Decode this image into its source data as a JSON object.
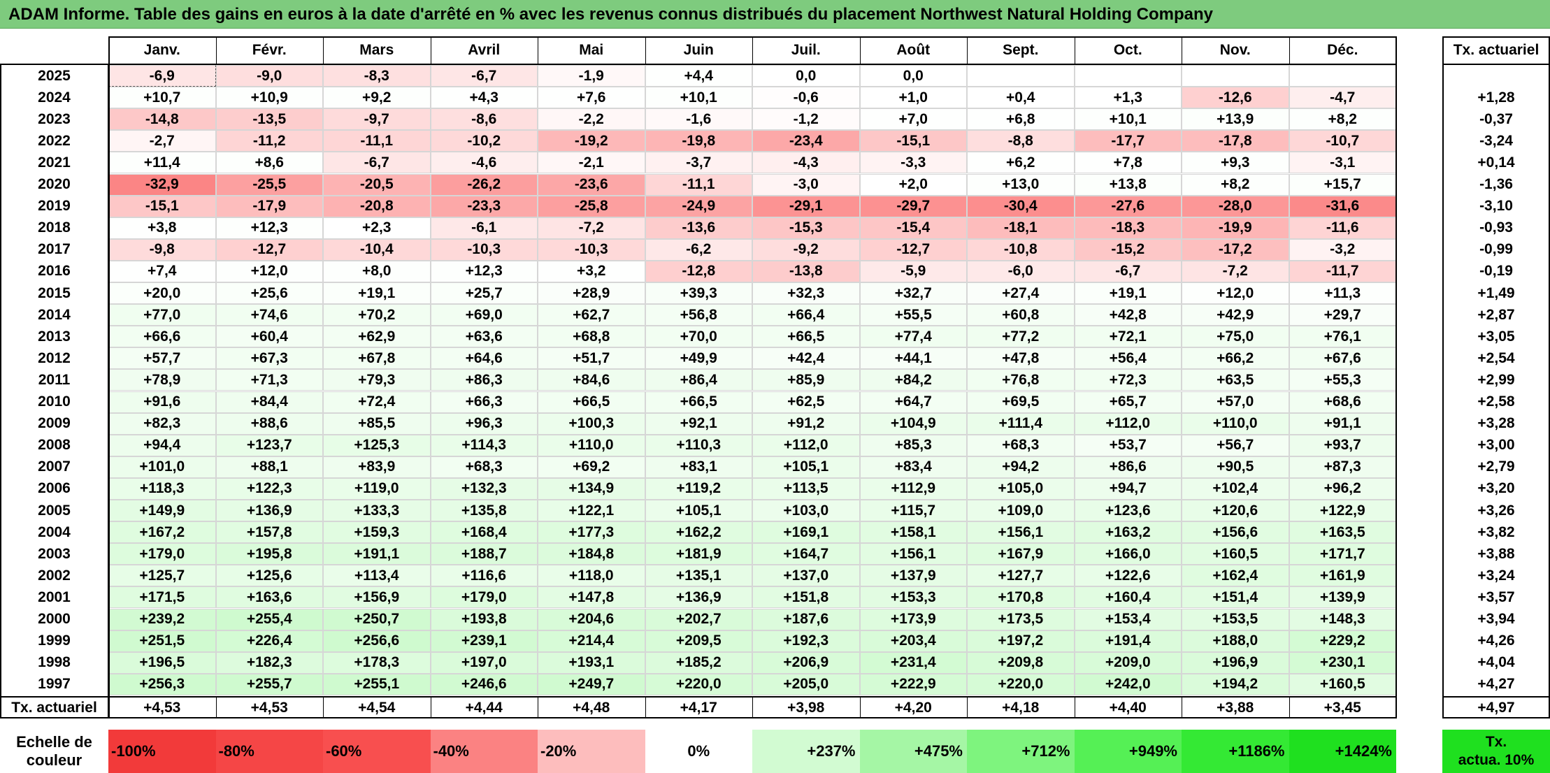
{
  "title": "ADAM Informe. Table des gains en euros à la date d'arrêté en % avec les revenus connus distribués du placement Northwest Natural Holding Company",
  "chart_data": {
    "type": "table",
    "months": [
      "Janv.",
      "Févr.",
      "Mars",
      "Avril",
      "Mai",
      "Juin",
      "Juil.",
      "Août",
      "Sept.",
      "Oct.",
      "Nov.",
      "Déc."
    ],
    "rate_header": "Tx. actuariel",
    "rows": [
      {
        "year": "2025",
        "values": [
          "-6,9",
          "-9,0",
          "-8,3",
          "-6,7",
          "-1,9",
          "+4,4",
          "0,0",
          "0,0",
          "",
          "",
          "",
          ""
        ],
        "rate": ""
      },
      {
        "year": "2024",
        "values": [
          "+10,7",
          "+10,9",
          "+9,2",
          "+4,3",
          "+7,6",
          "+10,1",
          "-0,6",
          "+1,0",
          "+0,4",
          "+1,3",
          "-12,6",
          "-4,7"
        ],
        "rate": "+1,28"
      },
      {
        "year": "2023",
        "values": [
          "-14,8",
          "-13,5",
          "-9,7",
          "-8,6",
          "-2,2",
          "-1,6",
          "-1,2",
          "+7,0",
          "+6,8",
          "+10,1",
          "+13,9",
          "+8,2"
        ],
        "rate": "-0,37"
      },
      {
        "year": "2022",
        "values": [
          "-2,7",
          "-11,2",
          "-11,1",
          "-10,2",
          "-19,2",
          "-19,8",
          "-23,4",
          "-15,1",
          "-8,8",
          "-17,7",
          "-17,8",
          "-10,7"
        ],
        "rate": "-3,24"
      },
      {
        "year": "2021",
        "values": [
          "+11,4",
          "+8,6",
          "-6,7",
          "-4,6",
          "-2,1",
          "-3,7",
          "-4,3",
          "-3,3",
          "+6,2",
          "+7,8",
          "+9,3",
          "-3,1"
        ],
        "rate": "+0,14"
      },
      {
        "year": "2020",
        "values": [
          "-32,9",
          "-25,5",
          "-20,5",
          "-26,2",
          "-23,6",
          "-11,1",
          "-3,0",
          "+2,0",
          "+13,0",
          "+13,8",
          "+8,2",
          "+15,7"
        ],
        "rate": "-1,36"
      },
      {
        "year": "2019",
        "values": [
          "-15,1",
          "-17,9",
          "-20,8",
          "-23,3",
          "-25,8",
          "-24,9",
          "-29,1",
          "-29,7",
          "-30,4",
          "-27,6",
          "-28,0",
          "-31,6"
        ],
        "rate": "-3,10"
      },
      {
        "year": "2018",
        "values": [
          "+3,8",
          "+12,3",
          "+2,3",
          "-6,1",
          "-7,2",
          "-13,6",
          "-15,3",
          "-15,4",
          "-18,1",
          "-18,3",
          "-19,9",
          "-11,6"
        ],
        "rate": "-0,93"
      },
      {
        "year": "2017",
        "values": [
          "-9,8",
          "-12,7",
          "-10,4",
          "-10,3",
          "-10,3",
          "-6,2",
          "-9,2",
          "-12,7",
          "-10,8",
          "-15,2",
          "-17,2",
          "-3,2"
        ],
        "rate": "-0,99"
      },
      {
        "year": "2016",
        "values": [
          "+7,4",
          "+12,0",
          "+8,0",
          "+12,3",
          "+3,2",
          "-12,8",
          "-13,8",
          "-5,9",
          "-6,0",
          "-6,7",
          "-7,2",
          "-11,7"
        ],
        "rate": "-0,19"
      },
      {
        "year": "2015",
        "values": [
          "+20,0",
          "+25,6",
          "+19,1",
          "+25,7",
          "+28,9",
          "+39,3",
          "+32,3",
          "+32,7",
          "+27,4",
          "+19,1",
          "+12,0",
          "+11,3"
        ],
        "rate": "+1,49"
      },
      {
        "year": "2014",
        "values": [
          "+77,0",
          "+74,6",
          "+70,2",
          "+69,0",
          "+62,7",
          "+56,8",
          "+66,4",
          "+55,5",
          "+60,8",
          "+42,8",
          "+42,9",
          "+29,7"
        ],
        "rate": "+2,87"
      },
      {
        "year": "2013",
        "values": [
          "+66,6",
          "+60,4",
          "+62,9",
          "+63,6",
          "+68,8",
          "+70,0",
          "+66,5",
          "+77,4",
          "+77,2",
          "+72,1",
          "+75,0",
          "+76,1"
        ],
        "rate": "+3,05"
      },
      {
        "year": "2012",
        "values": [
          "+57,7",
          "+67,3",
          "+67,8",
          "+64,6",
          "+51,7",
          "+49,9",
          "+42,4",
          "+44,1",
          "+47,8",
          "+56,4",
          "+66,2",
          "+67,6"
        ],
        "rate": "+2,54"
      },
      {
        "year": "2011",
        "values": [
          "+78,9",
          "+71,3",
          "+79,3",
          "+86,3",
          "+84,6",
          "+86,4",
          "+85,9",
          "+84,2",
          "+76,8",
          "+72,3",
          "+63,5",
          "+55,3"
        ],
        "rate": "+2,99"
      },
      {
        "year": "2010",
        "values": [
          "+91,6",
          "+84,4",
          "+72,4",
          "+66,3",
          "+66,5",
          "+66,5",
          "+62,5",
          "+64,7",
          "+69,5",
          "+65,7",
          "+57,0",
          "+68,6"
        ],
        "rate": "+2,58"
      },
      {
        "year": "2009",
        "values": [
          "+82,3",
          "+88,6",
          "+85,5",
          "+96,3",
          "+100,3",
          "+92,1",
          "+91,2",
          "+104,9",
          "+111,4",
          "+112,0",
          "+110,0",
          "+91,1"
        ],
        "rate": "+3,28"
      },
      {
        "year": "2008",
        "values": [
          "+94,4",
          "+123,7",
          "+125,3",
          "+114,3",
          "+110,0",
          "+110,3",
          "+112,0",
          "+85,3",
          "+68,3",
          "+53,7",
          "+56,7",
          "+93,7"
        ],
        "rate": "+3,00"
      },
      {
        "year": "2007",
        "values": [
          "+101,0",
          "+88,1",
          "+83,9",
          "+68,3",
          "+69,2",
          "+83,1",
          "+105,1",
          "+83,4",
          "+94,2",
          "+86,6",
          "+90,5",
          "+87,3"
        ],
        "rate": "+2,79"
      },
      {
        "year": "2006",
        "values": [
          "+118,3",
          "+122,3",
          "+119,0",
          "+132,3",
          "+134,9",
          "+119,2",
          "+113,5",
          "+112,9",
          "+105,0",
          "+94,7",
          "+102,4",
          "+96,2"
        ],
        "rate": "+3,20"
      },
      {
        "year": "2005",
        "values": [
          "+149,9",
          "+136,9",
          "+133,3",
          "+135,8",
          "+122,1",
          "+105,1",
          "+103,0",
          "+115,7",
          "+109,0",
          "+123,6",
          "+120,6",
          "+122,9"
        ],
        "rate": "+3,26"
      },
      {
        "year": "2004",
        "values": [
          "+167,2",
          "+157,8",
          "+159,3",
          "+168,4",
          "+177,3",
          "+162,2",
          "+169,1",
          "+158,1",
          "+156,1",
          "+163,2",
          "+156,6",
          "+163,5"
        ],
        "rate": "+3,82"
      },
      {
        "year": "2003",
        "values": [
          "+179,0",
          "+195,8",
          "+191,1",
          "+188,7",
          "+184,8",
          "+181,9",
          "+164,7",
          "+156,1",
          "+167,9",
          "+166,0",
          "+160,5",
          "+171,7"
        ],
        "rate": "+3,88"
      },
      {
        "year": "2002",
        "values": [
          "+125,7",
          "+125,6",
          "+113,4",
          "+116,6",
          "+118,0",
          "+135,1",
          "+137,0",
          "+137,9",
          "+127,7",
          "+122,6",
          "+162,4",
          "+161,9"
        ],
        "rate": "+3,24"
      },
      {
        "year": "2001",
        "values": [
          "+171,5",
          "+163,6",
          "+156,9",
          "+179,0",
          "+147,8",
          "+136,9",
          "+151,8",
          "+153,3",
          "+170,8",
          "+160,4",
          "+151,4",
          "+139,9"
        ],
        "rate": "+3,57"
      },
      {
        "year": "2000",
        "values": [
          "+239,2",
          "+255,4",
          "+250,7",
          "+193,8",
          "+204,6",
          "+202,7",
          "+187,6",
          "+173,9",
          "+173,5",
          "+153,4",
          "+153,5",
          "+148,3"
        ],
        "rate": "+3,94"
      },
      {
        "year": "1999",
        "values": [
          "+251,5",
          "+226,4",
          "+256,6",
          "+239,1",
          "+214,4",
          "+209,5",
          "+192,3",
          "+203,4",
          "+197,2",
          "+191,4",
          "+188,0",
          "+229,2"
        ],
        "rate": "+4,26"
      },
      {
        "year": "1998",
        "values": [
          "+196,5",
          "+182,3",
          "+178,3",
          "+197,0",
          "+193,1",
          "+185,2",
          "+206,9",
          "+231,4",
          "+209,8",
          "+209,0",
          "+196,9",
          "+230,1"
        ],
        "rate": "+4,04"
      },
      {
        "year": "1997",
        "values": [
          "+256,3",
          "+255,7",
          "+255,1",
          "+246,6",
          "+249,7",
          "+220,0",
          "+205,0",
          "+222,9",
          "+220,0",
          "+242,0",
          "+194,2",
          "+160,5"
        ],
        "rate": "+4,27"
      }
    ],
    "footer": {
      "label": "Tx. actuariel",
      "values": [
        "+4,53",
        "+4,53",
        "+4,54",
        "+4,44",
        "+4,48",
        "+4,17",
        "+3,98",
        "+4,20",
        "+4,18",
        "+4,40",
        "+3,88",
        "+3,45"
      ],
      "rate": "+4,97"
    },
    "color_scale": {
      "label_line1": "Echelle de",
      "label_line2": "couleur",
      "steps": [
        {
          "label": "-100%",
          "color": "#f23a3a"
        },
        {
          "label": "-80%",
          "color": "#f54646"
        },
        {
          "label": "-60%",
          "color": "#f84f4f"
        },
        {
          "label": "-40%",
          "color": "#fb8282"
        },
        {
          "label": "-20%",
          "color": "#fdbdbd"
        },
        {
          "label": "0%",
          "color": "#ffffff"
        },
        {
          "label": "+237%",
          "color": "#d2fbd2"
        },
        {
          "label": "+475%",
          "color": "#a5f6a5"
        },
        {
          "label": "+712%",
          "color": "#7ef47e"
        },
        {
          "label": "+949%",
          "color": "#55f055"
        },
        {
          "label": "+1186%",
          "color": "#34e934"
        },
        {
          "label": "+1424%",
          "color": "#1fe01f"
        }
      ],
      "rate_label_line1": "Tx.",
      "rate_label_line2": "actua. 10%",
      "rate_color": "#1fe01f"
    }
  }
}
